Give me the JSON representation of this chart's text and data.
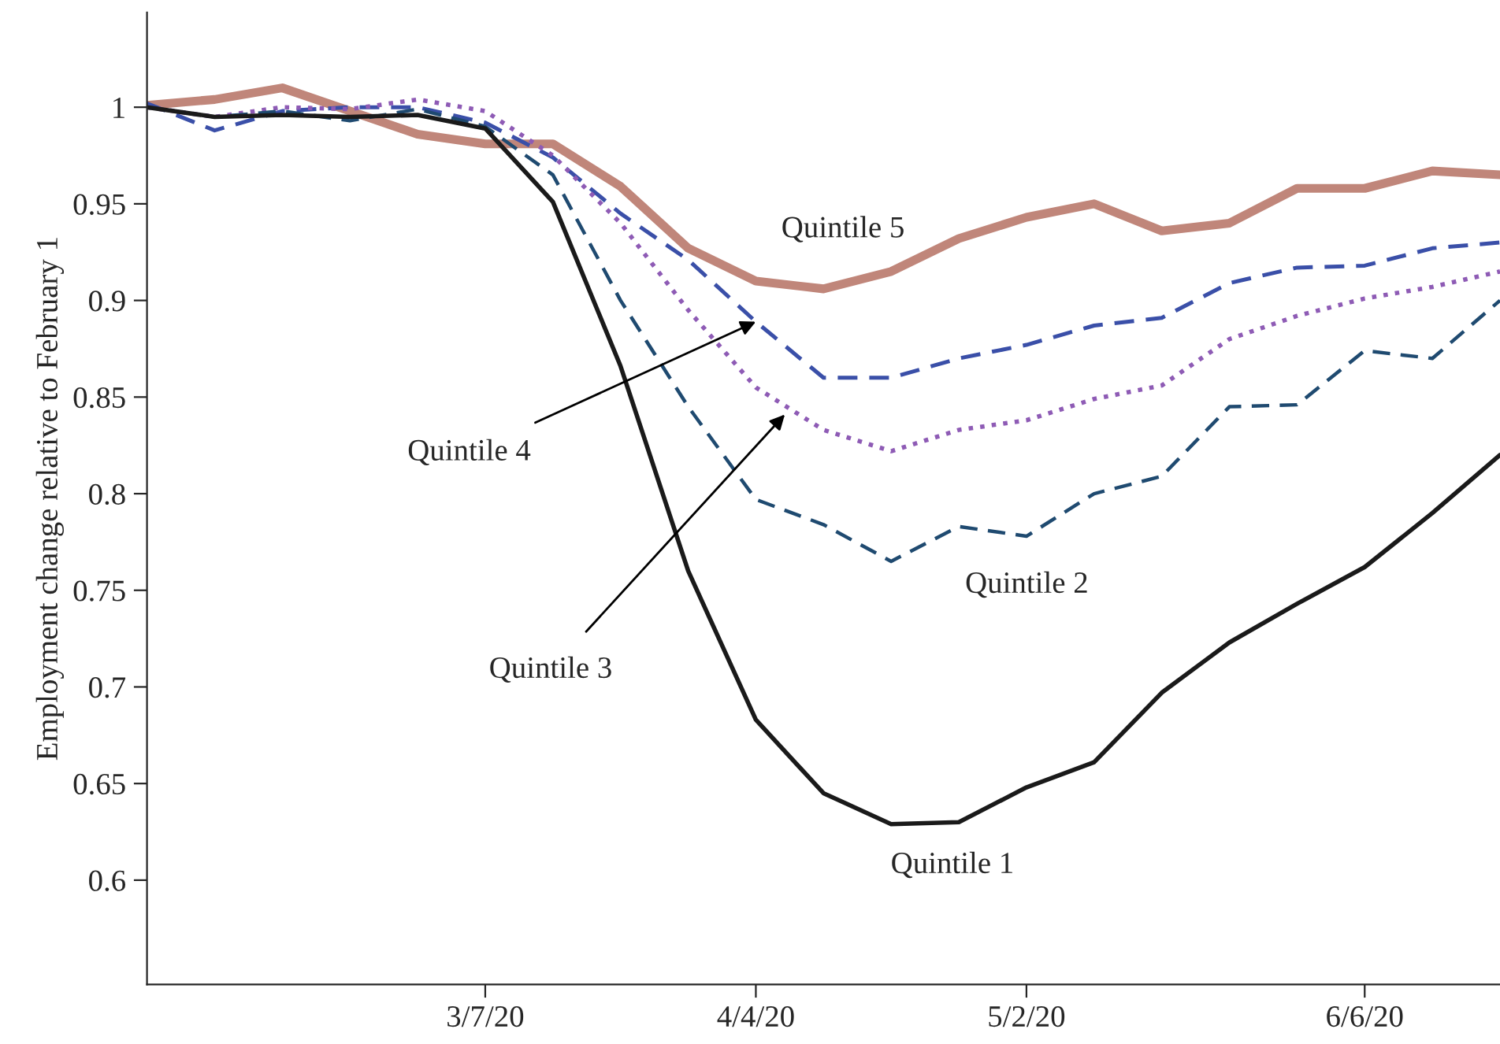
{
  "chart_data": {
    "type": "line",
    "ylabel": "Employment change relative to February 1",
    "x": [
      "2020-02-01",
      "2020-02-08",
      "2020-02-15",
      "2020-02-22",
      "2020-02-29",
      "2020-03-07",
      "2020-03-14",
      "2020-03-21",
      "2020-03-28",
      "2020-04-04",
      "2020-04-11",
      "2020-04-18",
      "2020-04-25",
      "2020-05-02",
      "2020-05-09",
      "2020-05-16",
      "2020-05-23",
      "2020-05-30",
      "2020-06-06",
      "2020-06-13",
      "2020-06-20"
    ],
    "xlim": [
      "2020-02-01",
      "2020-06-20"
    ],
    "xticks": [
      {
        "value": "2020-03-07",
        "label": "3/7/20"
      },
      {
        "value": "2020-04-04",
        "label": "4/4/20"
      },
      {
        "value": "2020-05-02",
        "label": "5/2/20"
      },
      {
        "value": "2020-06-06",
        "label": "6/6/20"
      }
    ],
    "ylim": [
      0.546,
      1.049
    ],
    "yticks": [
      0.6,
      0.65,
      0.7,
      0.75,
      0.8,
      0.85,
      0.9,
      0.95,
      1
    ],
    "grid": false,
    "legend": false,
    "series": [
      {
        "color": "#c0867a",
        "line_style": "solid",
        "values": [
          1.001,
          1.004,
          1.01,
          0.998,
          0.986,
          0.981,
          0.981,
          0.959,
          0.927,
          0.91,
          0.906,
          0.915,
          0.932,
          0.943,
          0.95,
          0.936,
          0.94,
          0.958,
          0.958,
          0.967,
          0.965
        ]
      },
      {
        "color": "#3a4fa8",
        "line_style": "dashed",
        "values": [
          1.002,
          0.988,
          0.998,
          1.0,
          1.0,
          0.992,
          0.974,
          0.945,
          0.921,
          0.889,
          0.86,
          0.86,
          0.87,
          0.877,
          0.887,
          0.891,
          0.909,
          0.917,
          0.918,
          0.927,
          0.93
        ]
      },
      {
        "color": "#8e5bb5",
        "line_style": "dotted",
        "values": [
          1.0,
          0.995,
          1.0,
          0.999,
          1.004,
          0.998,
          0.975,
          0.94,
          0.895,
          0.855,
          0.833,
          0.822,
          0.833,
          0.838,
          0.849,
          0.856,
          0.88,
          0.892,
          0.901,
          0.907,
          0.915
        ]
      },
      {
        "color": "#1f4a70",
        "line_style": "dashed",
        "values": [
          1.0,
          0.995,
          0.998,
          0.993,
          0.999,
          0.99,
          0.965,
          0.9,
          0.845,
          0.797,
          0.784,
          0.765,
          0.783,
          0.778,
          0.8,
          0.809,
          0.845,
          0.846,
          0.874,
          0.87,
          0.9
        ]
      },
      {
        "color": "#1a1a1a",
        "line_style": "solid",
        "values": [
          1.0,
          0.995,
          0.996,
          0.995,
          0.996,
          0.989,
          0.951,
          0.866,
          0.76,
          0.683,
          0.645,
          0.629,
          0.63,
          0.648,
          0.661,
          0.697,
          0.723,
          0.743,
          0.762,
          0.79,
          0.82
        ]
      }
    ],
    "annotations": [
      {
        "text": "Quintile 5",
        "x": "2020-04-18",
        "y": 0.915
      },
      {
        "text": "Quintile 4",
        "x": "2020-04-04",
        "y": 0.889
      },
      {
        "text": "Quintile 3",
        "x": "2020-04-07",
        "y": 0.841
      },
      {
        "text": "Quintile 2",
        "x": "2020-04-18",
        "y": 0.765
      },
      {
        "text": "Quintile 1",
        "x": "2020-04-18",
        "y": 0.629
      }
    ]
  }
}
